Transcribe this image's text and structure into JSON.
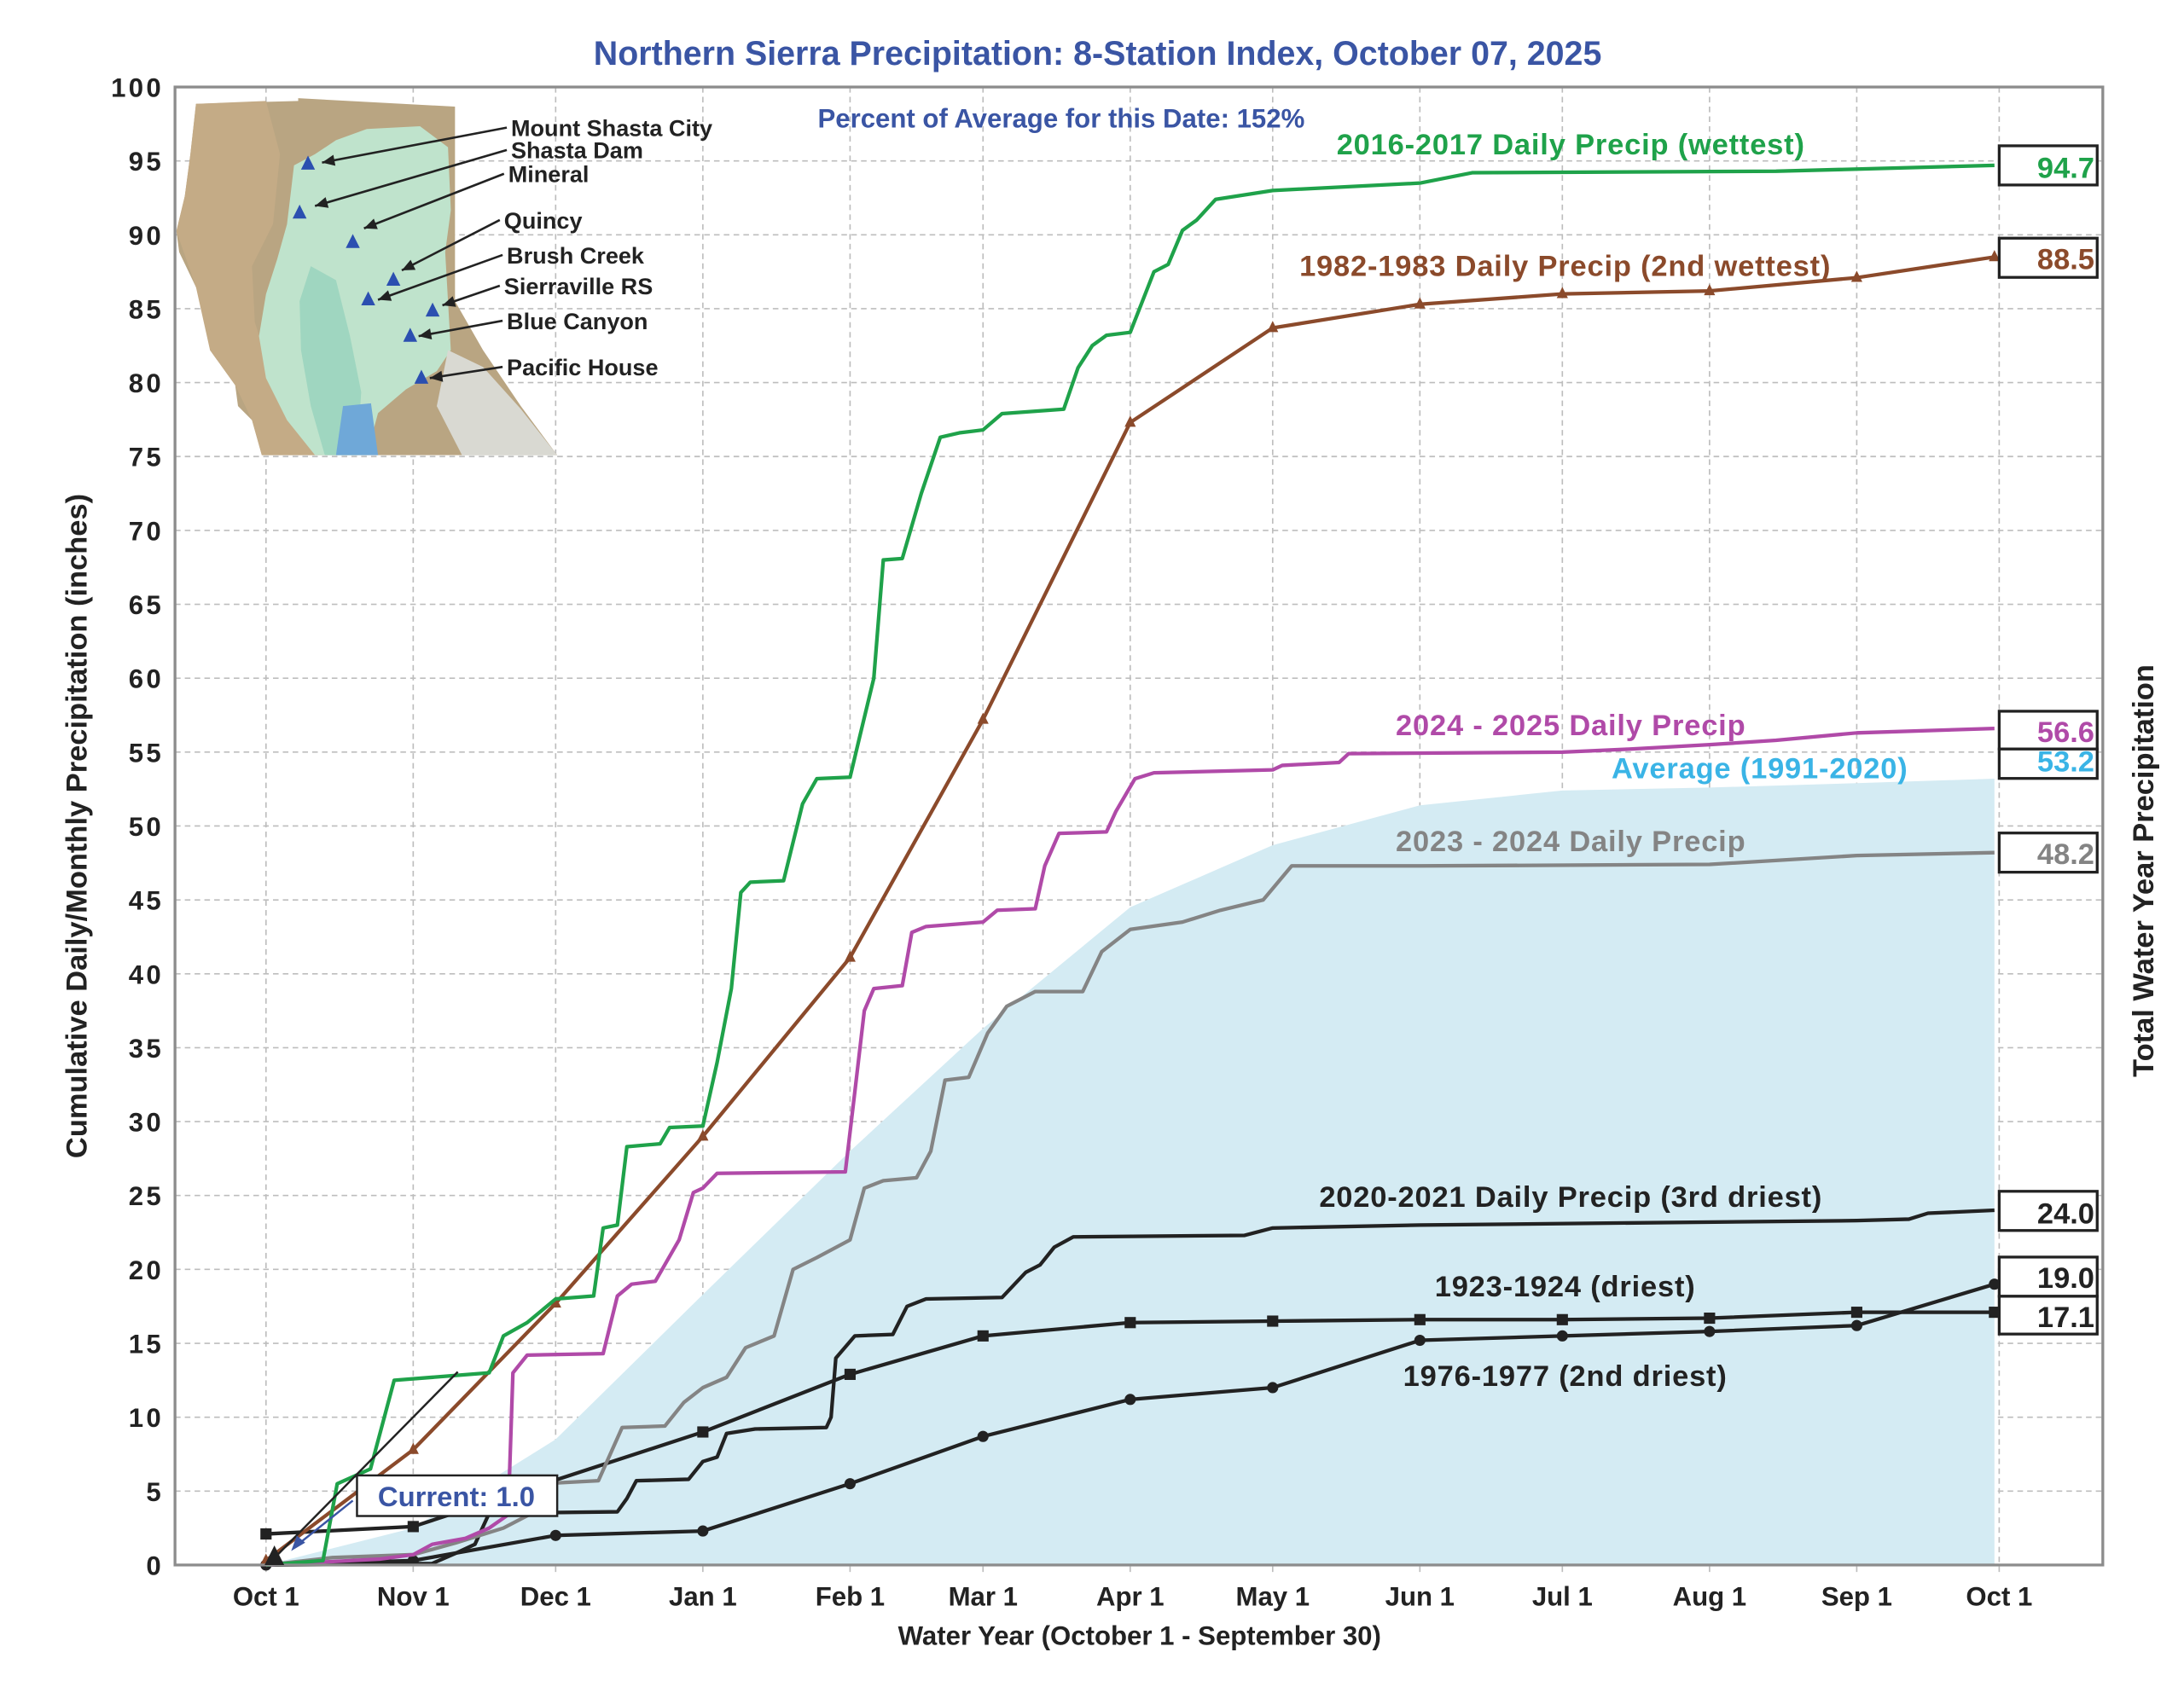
{
  "chart_data": {
    "type": "line",
    "title": "Northern Sierra Precipitation: 8-Station Index, October 07, 2025",
    "subtitle": "Percent of Average for this Date: 152%",
    "xlabel": "Water Year (October 1 - September 30)",
    "ylabel": "Cumulative Daily/Monthly Precipitation (inches)",
    "ylabel_right": "Total Water Year Precipitation",
    "ylim": [
      0,
      100
    ],
    "yticks": [
      "0",
      "5",
      "10",
      "15",
      "20",
      "25",
      "30",
      "35",
      "40",
      "45",
      "50",
      "55",
      "60",
      "65",
      "70",
      "75",
      "80",
      "85",
      "90",
      "95",
      "100"
    ],
    "xticks": [
      {
        "date": "10-01",
        "label": "Oct 1"
      },
      {
        "date": "11-01",
        "label": "Nov 1"
      },
      {
        "date": "12-01",
        "label": "Dec 1"
      },
      {
        "date": "01-01",
        "label": "Jan 1"
      },
      {
        "date": "02-01",
        "label": "Feb 1"
      },
      {
        "date": "03-01",
        "label": "Mar 1"
      },
      {
        "date": "04-01",
        "label": "Apr 1"
      },
      {
        "date": "05-01",
        "label": "May 1"
      },
      {
        "date": "06-01",
        "label": "Jun 1"
      },
      {
        "date": "07-01",
        "label": "Jul 1"
      },
      {
        "date": "08-01",
        "label": "Aug 1"
      },
      {
        "date": "09-01",
        "label": "Sep 1"
      },
      {
        "date": "10-01+",
        "label": "Oct 1"
      }
    ],
    "grid": true,
    "average": {
      "name": "Average (1991-2020)",
      "color": "#3ab4e6",
      "fill": "#d4ebf3",
      "end_value": "53.2",
      "points": [
        [
          "10-01",
          0
        ],
        [
          "11-01",
          2.5
        ],
        [
          "12-01",
          8.5
        ],
        [
          "01-01",
          18.3
        ],
        [
          "02-01",
          28
        ],
        [
          "03-01",
          36.3
        ],
        [
          "04-01",
          44.5
        ],
        [
          "05-01",
          48.7
        ],
        [
          "06-01",
          51.4
        ],
        [
          "07-01",
          52.4
        ],
        [
          "08-01",
          52.6
        ],
        [
          "09-01",
          52.9
        ],
        [
          "09-30",
          53.2
        ]
      ]
    },
    "series": [
      {
        "name": "2016-2017 Daily Precip (wettest)",
        "color": "#1fa24a",
        "marker": "none",
        "end_value": "94.7",
        "points": [
          [
            "10-01",
            0
          ],
          [
            "10-13",
            0.3
          ],
          [
            "10-16",
            5.5
          ],
          [
            "10-23",
            6.5
          ],
          [
            "10-28",
            12.5
          ],
          [
            "11-17",
            13.0
          ],
          [
            "11-20",
            15.5
          ],
          [
            "11-25",
            16.4
          ],
          [
            "12-01",
            18.0
          ],
          [
            "12-09",
            18.2
          ],
          [
            "12-11",
            22.8
          ],
          [
            "12-14",
            23.0
          ],
          [
            "12-16",
            28.3
          ],
          [
            "12-23",
            28.5
          ],
          [
            "12-25",
            29.6
          ],
          [
            "01-01",
            29.7
          ],
          [
            "01-04",
            34
          ],
          [
            "01-07",
            39
          ],
          [
            "01-09",
            45.5
          ],
          [
            "01-11",
            46.2
          ],
          [
            "01-18",
            46.3
          ],
          [
            "01-22",
            51.5
          ],
          [
            "01-25",
            53.2
          ],
          [
            "02-01",
            53.3
          ],
          [
            "02-03",
            56
          ],
          [
            "02-06",
            60
          ],
          [
            "02-08",
            68
          ],
          [
            "02-12",
            68.1
          ],
          [
            "02-16",
            72.5
          ],
          [
            "02-20",
            76.3
          ],
          [
            "02-24",
            76.6
          ],
          [
            "03-01",
            76.8
          ],
          [
            "03-05",
            77.9
          ],
          [
            "03-18",
            78.2
          ],
          [
            "03-21",
            81
          ],
          [
            "03-24",
            82.5
          ],
          [
            "03-27",
            83.2
          ],
          [
            "04-01",
            83.4
          ],
          [
            "04-06",
            87.5
          ],
          [
            "04-09",
            88
          ],
          [
            "04-12",
            90.3
          ],
          [
            "04-15",
            91
          ],
          [
            "04-19",
            92.4
          ],
          [
            "05-01",
            93
          ],
          [
            "06-01",
            93.5
          ],
          [
            "06-12",
            94.2
          ],
          [
            "08-15",
            94.3
          ],
          [
            "09-30",
            94.7
          ]
        ]
      },
      {
        "name": "1982-1983 Daily Precip (2nd wettest)",
        "color": "#8b4a2b",
        "marker": "triangle",
        "end_value": "88.5",
        "points": [
          [
            "10-01",
            0.3
          ],
          [
            "11-01",
            7.8
          ],
          [
            "12-01",
            17.7
          ],
          [
            "01-01",
            29.0
          ],
          [
            "02-01",
            41.1
          ],
          [
            "03-01",
            57.2
          ],
          [
            "04-01",
            77.3
          ],
          [
            "05-01",
            83.7
          ],
          [
            "06-01",
            85.3
          ],
          [
            "07-01",
            86.0
          ],
          [
            "08-01",
            86.2
          ],
          [
            "09-01",
            87.1
          ],
          [
            "09-30",
            88.5
          ]
        ]
      },
      {
        "name": "2024 - 2025 Daily Precip",
        "color": "#b04aa8",
        "marker": "none",
        "end_value": "56.6",
        "points": [
          [
            "10-01",
            0
          ],
          [
            "10-25",
            0.4
          ],
          [
            "11-01",
            0.7
          ],
          [
            "11-05",
            1.4
          ],
          [
            "11-12",
            1.8
          ],
          [
            "11-17",
            2.5
          ],
          [
            "11-21",
            3.4
          ],
          [
            "11-22",
            13
          ],
          [
            "11-25",
            14.2
          ],
          [
            "12-11",
            14.3
          ],
          [
            "12-14",
            18.2
          ],
          [
            "12-17",
            19
          ],
          [
            "12-22",
            19.2
          ],
          [
            "12-27",
            22
          ],
          [
            "12-30",
            25.2
          ],
          [
            "01-01",
            25.5
          ],
          [
            "01-04",
            26.5
          ],
          [
            "01-31",
            26.6
          ],
          [
            "02-02",
            32
          ],
          [
            "02-04",
            37.5
          ],
          [
            "02-06",
            39
          ],
          [
            "02-12",
            39.2
          ],
          [
            "02-14",
            42.8
          ],
          [
            "02-17",
            43.2
          ],
          [
            "03-01",
            43.5
          ],
          [
            "03-04",
            44.3
          ],
          [
            "03-12",
            44.4
          ],
          [
            "03-14",
            47.3
          ],
          [
            "03-17",
            49.5
          ],
          [
            "03-27",
            49.6
          ],
          [
            "03-29",
            51
          ],
          [
            "04-02",
            53.2
          ],
          [
            "04-06",
            53.6
          ],
          [
            "05-01",
            53.8
          ],
          [
            "05-03",
            54.1
          ],
          [
            "05-15",
            54.3
          ],
          [
            "05-17",
            54.9
          ],
          [
            "07-01",
            55.0
          ],
          [
            "07-15",
            55.2
          ],
          [
            "08-01",
            55.5
          ],
          [
            "08-15",
            55.8
          ],
          [
            "09-01",
            56.3
          ],
          [
            "09-30",
            56.6
          ]
        ]
      },
      {
        "name": "2023 - 2024 Daily Precip",
        "color": "#848484",
        "marker": "none",
        "end_value": "48.2",
        "points": [
          [
            "10-01",
            0
          ],
          [
            "10-15",
            0.5
          ],
          [
            "11-01",
            0.7
          ],
          [
            "11-10",
            1.5
          ],
          [
            "11-20",
            2.5
          ],
          [
            "11-26",
            3.5
          ],
          [
            "11-28",
            5.5
          ],
          [
            "12-10",
            5.7
          ],
          [
            "12-15",
            9.3
          ],
          [
            "12-24",
            9.4
          ],
          [
            "12-28",
            11
          ],
          [
            "01-01",
            12
          ],
          [
            "01-06",
            12.7
          ],
          [
            "01-10",
            14.7
          ],
          [
            "01-16",
            15.5
          ],
          [
            "01-20",
            20
          ],
          [
            "01-25",
            20.8
          ],
          [
            "02-01",
            22
          ],
          [
            "02-04",
            25.5
          ],
          [
            "02-08",
            26
          ],
          [
            "02-15",
            26.2
          ],
          [
            "02-18",
            28
          ],
          [
            "02-21",
            32.8
          ],
          [
            "02-26",
            33
          ],
          [
            "03-02",
            36
          ],
          [
            "03-06",
            37.8
          ],
          [
            "03-12",
            38.8
          ],
          [
            "03-22",
            38.8
          ],
          [
            "03-26",
            41.5
          ],
          [
            "04-01",
            43
          ],
          [
            "04-12",
            43.5
          ],
          [
            "04-20",
            44.3
          ],
          [
            "04-29",
            45
          ],
          [
            "05-05",
            47.3
          ],
          [
            "06-01",
            47.3
          ],
          [
            "08-01",
            47.4
          ],
          [
            "09-01",
            48.0
          ],
          [
            "09-30",
            48.2
          ]
        ]
      },
      {
        "name": "2020-2021 Daily Precip (3rd driest)",
        "color": "#222222",
        "marker": "none",
        "end_value": "24.0",
        "points": [
          [
            "10-01",
            0
          ],
          [
            "11-05",
            0.1
          ],
          [
            "11-10",
            0.8
          ],
          [
            "11-14",
            1.4
          ],
          [
            "11-17",
            3.5
          ],
          [
            "12-14",
            3.6
          ],
          [
            "12-16",
            4.5
          ],
          [
            "12-18",
            5.7
          ],
          [
            "12-29",
            5.8
          ],
          [
            "01-01",
            7.0
          ],
          [
            "01-04",
            7.3
          ],
          [
            "01-06",
            8.9
          ],
          [
            "01-12",
            9.2
          ],
          [
            "01-27",
            9.3
          ],
          [
            "01-28",
            10
          ],
          [
            "01-29",
            14
          ],
          [
            "02-02",
            15.5
          ],
          [
            "02-10",
            15.6
          ],
          [
            "02-13",
            17.5
          ],
          [
            "02-17",
            18
          ],
          [
            "03-05",
            18.1
          ],
          [
            "03-10",
            19.8
          ],
          [
            "03-13",
            20.3
          ],
          [
            "03-16",
            21.5
          ],
          [
            "03-20",
            22.2
          ],
          [
            "04-25",
            22.3
          ],
          [
            "05-01",
            22.8
          ],
          [
            "06-01",
            23.0
          ],
          [
            "09-01",
            23.3
          ],
          [
            "09-12",
            23.4
          ],
          [
            "09-16",
            23.8
          ],
          [
            "09-30",
            24.0
          ]
        ]
      },
      {
        "name": "1923-1924 (driest)",
        "color": "#222222",
        "marker": "square",
        "end_value": "17.1",
        "points": [
          [
            "10-01",
            2.1
          ],
          [
            "11-01",
            2.6
          ],
          [
            "01-01",
            9.0
          ],
          [
            "02-01",
            12.9
          ],
          [
            "03-01",
            15.5
          ],
          [
            "04-01",
            16.4
          ],
          [
            "05-01",
            16.5
          ],
          [
            "06-01",
            16.6
          ],
          [
            "07-01",
            16.6
          ],
          [
            "08-01",
            16.7
          ],
          [
            "09-01",
            17.1
          ],
          [
            "09-30",
            17.1
          ]
        ]
      },
      {
        "name": "1976-1977 (2nd driest)",
        "color": "#222222",
        "marker": "circle",
        "end_value": "19.0",
        "points": [
          [
            "10-01",
            0
          ],
          [
            "11-01",
            0.3
          ],
          [
            "12-01",
            2.0
          ],
          [
            "01-01",
            2.3
          ],
          [
            "02-01",
            5.5
          ],
          [
            "03-01",
            8.7
          ],
          [
            "04-01",
            11.2
          ],
          [
            "05-01",
            12.0
          ],
          [
            "06-01",
            15.2
          ],
          [
            "07-01",
            15.5
          ],
          [
            "08-01",
            15.8
          ],
          [
            "09-01",
            16.2
          ],
          [
            "09-30",
            19.0
          ]
        ]
      }
    ],
    "current": {
      "label": "Current: 1.0",
      "value": 1.0,
      "date": "10-07",
      "color": "#3a55a4"
    }
  },
  "map": {
    "stations": [
      "Mount Shasta City",
      "Shasta Dam",
      "Mineral",
      "Quincy",
      "Brush Creek",
      "Sierraville RS",
      "Blue Canyon",
      "Pacific House"
    ],
    "marker_color": "#2b4fb0"
  },
  "colors": {
    "title": "#3a55a4",
    "axis": "#8c8c8c",
    "text": "#222222"
  }
}
